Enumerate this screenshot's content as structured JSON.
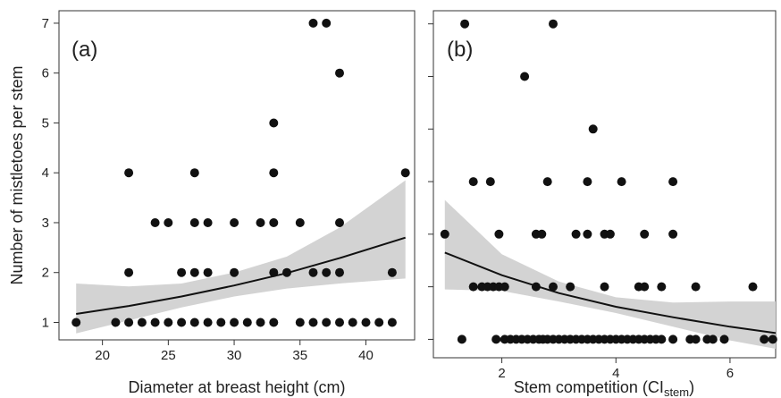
{
  "chart_data": [
    {
      "type": "scatter",
      "panel_label": "(a)",
      "xlabel": "Diameter at breast height (cm)",
      "ylabel": "Number of mistletoes per stem",
      "xlim": [
        16.7,
        43.7
      ],
      "ylim": [
        0.65,
        7.25
      ],
      "xticks": [
        20,
        25,
        30,
        35,
        40
      ],
      "yticks": [
        1,
        2,
        3,
        4,
        5,
        6,
        7
      ],
      "grid": false,
      "legend": "none",
      "point_color": "#111111",
      "fit_color": "#111111",
      "band_color": "#d3d3d3",
      "points": [
        [
          18,
          1
        ],
        [
          21,
          1
        ],
        [
          22,
          1
        ],
        [
          23,
          1
        ],
        [
          24,
          1
        ],
        [
          25,
          1
        ],
        [
          26,
          1
        ],
        [
          27,
          1
        ],
        [
          28,
          1
        ],
        [
          29,
          1
        ],
        [
          30,
          1
        ],
        [
          31,
          1
        ],
        [
          32,
          1
        ],
        [
          33,
          1
        ],
        [
          35,
          1
        ],
        [
          36,
          1
        ],
        [
          37,
          1
        ],
        [
          38,
          1
        ],
        [
          39,
          1
        ],
        [
          40,
          1
        ],
        [
          41,
          1
        ],
        [
          42,
          1
        ],
        [
          22,
          2
        ],
        [
          26,
          2
        ],
        [
          27,
          2
        ],
        [
          28,
          2
        ],
        [
          30,
          2
        ],
        [
          33,
          2
        ],
        [
          34,
          2
        ],
        [
          36,
          2
        ],
        [
          37,
          2
        ],
        [
          38,
          2
        ],
        [
          42,
          2
        ],
        [
          24,
          3
        ],
        [
          25,
          3
        ],
        [
          27,
          3
        ],
        [
          28,
          3
        ],
        [
          30,
          3
        ],
        [
          32,
          3
        ],
        [
          33,
          3
        ],
        [
          35,
          3
        ],
        [
          38,
          3
        ],
        [
          22,
          4
        ],
        [
          27,
          4
        ],
        [
          33,
          4
        ],
        [
          43,
          4
        ],
        [
          33,
          5
        ],
        [
          38,
          6
        ],
        [
          36,
          7
        ],
        [
          37,
          7
        ]
      ],
      "fit": {
        "x": [
          18,
          22,
          26,
          30,
          34,
          38,
          43
        ],
        "y": [
          1.17,
          1.33,
          1.52,
          1.74,
          1.99,
          2.29,
          2.7
        ],
        "lower": [
          0.78,
          1.04,
          1.3,
          1.52,
          1.68,
          1.78,
          1.88
        ],
        "upper": [
          1.78,
          1.72,
          1.78,
          2.0,
          2.32,
          2.9,
          3.85
        ]
      }
    },
    {
      "type": "scatter",
      "panel_label": "(b)",
      "xlabel_main": "Stem competition (CI",
      "xlabel_sub": "stem",
      "xlabel_end": ")",
      "ylabel": "",
      "xlim": [
        0.8,
        6.8
      ],
      "ylim": [
        0.65,
        7.25
      ],
      "xticks": [
        2,
        4,
        6
      ],
      "yticks": [
        1,
        2,
        3,
        4,
        5,
        6,
        7
      ],
      "grid": false,
      "legend": "none",
      "point_color": "#111111",
      "fit_color": "#111111",
      "band_color": "#d3d3d3",
      "points": [
        [
          1.3,
          1
        ],
        [
          1.9,
          1
        ],
        [
          2.05,
          1
        ],
        [
          2.15,
          1
        ],
        [
          2.25,
          1
        ],
        [
          2.35,
          1
        ],
        [
          2.45,
          1
        ],
        [
          2.55,
          1
        ],
        [
          2.65,
          1
        ],
        [
          2.72,
          1
        ],
        [
          2.8,
          1
        ],
        [
          2.9,
          1
        ],
        [
          3.0,
          1
        ],
        [
          3.1,
          1
        ],
        [
          3.2,
          1
        ],
        [
          3.3,
          1
        ],
        [
          3.4,
          1
        ],
        [
          3.5,
          1
        ],
        [
          3.6,
          1
        ],
        [
          3.7,
          1
        ],
        [
          3.8,
          1
        ],
        [
          3.9,
          1
        ],
        [
          4.0,
          1
        ],
        [
          4.1,
          1
        ],
        [
          4.2,
          1
        ],
        [
          4.3,
          1
        ],
        [
          4.4,
          1
        ],
        [
          4.5,
          1
        ],
        [
          4.6,
          1
        ],
        [
          4.7,
          1
        ],
        [
          4.8,
          1
        ],
        [
          5.0,
          1
        ],
        [
          5.3,
          1
        ],
        [
          5.4,
          1
        ],
        [
          5.6,
          1
        ],
        [
          5.7,
          1
        ],
        [
          5.9,
          1
        ],
        [
          6.6,
          1
        ],
        [
          6.75,
          1
        ],
        [
          1.5,
          2
        ],
        [
          1.65,
          2
        ],
        [
          1.75,
          2
        ],
        [
          1.85,
          2
        ],
        [
          1.95,
          2
        ],
        [
          2.05,
          2
        ],
        [
          2.6,
          2
        ],
        [
          2.9,
          2
        ],
        [
          3.2,
          2
        ],
        [
          3.8,
          2
        ],
        [
          4.4,
          2
        ],
        [
          4.5,
          2
        ],
        [
          4.8,
          2
        ],
        [
          5.4,
          2
        ],
        [
          6.4,
          2
        ],
        [
          1.0,
          3
        ],
        [
          1.95,
          3
        ],
        [
          2.6,
          3
        ],
        [
          2.7,
          3
        ],
        [
          3.3,
          3
        ],
        [
          3.5,
          3
        ],
        [
          3.8,
          3
        ],
        [
          3.9,
          3
        ],
        [
          4.5,
          3
        ],
        [
          5.0,
          3
        ],
        [
          1.5,
          4
        ],
        [
          1.8,
          4
        ],
        [
          2.8,
          4
        ],
        [
          3.5,
          4
        ],
        [
          4.1,
          4
        ],
        [
          5.0,
          4
        ],
        [
          3.6,
          5
        ],
        [
          2.4,
          6
        ],
        [
          1.35,
          7
        ],
        [
          2.9,
          7
        ]
      ],
      "fit": {
        "x": [
          1.0,
          2.0,
          3.0,
          4.0,
          5.0,
          6.0,
          6.8
        ],
        "y": [
          2.65,
          2.22,
          1.88,
          1.62,
          1.42,
          1.24,
          1.12
        ],
        "lower": [
          1.95,
          1.92,
          1.72,
          1.5,
          1.24,
          0.98,
          0.82
        ],
        "upper": [
          3.65,
          2.62,
          2.1,
          1.8,
          1.7,
          1.72,
          1.72
        ]
      }
    }
  ]
}
